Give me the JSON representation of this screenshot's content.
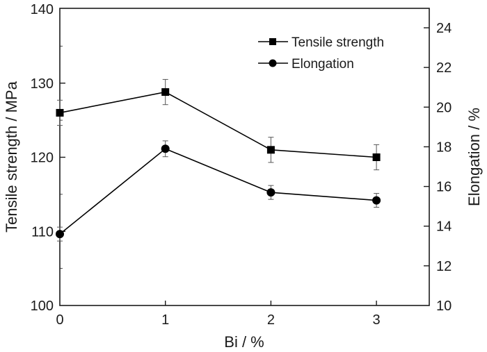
{
  "chart_data": {
    "type": "line",
    "title": "",
    "xlabel": "Bi / %",
    "ylabel_left": "Tensile strength / MPa",
    "ylabel_right": "Elongation / %",
    "x": [
      0,
      1,
      2,
      3
    ],
    "x_ticks": [
      "0",
      "1",
      "2",
      "3"
    ],
    "xlim": [
      0,
      3.5
    ],
    "ylim_left": [
      100,
      140
    ],
    "y_ticks_left": [
      "100",
      "110",
      "120",
      "130",
      "140"
    ],
    "ylim_right": [
      10,
      25
    ],
    "y_ticks_right": [
      "10",
      "12",
      "14",
      "16",
      "18",
      "20",
      "22",
      "24"
    ],
    "grid": false,
    "legend_position": "top-right",
    "series": [
      {
        "name": "Tensile strength",
        "axis": "left",
        "marker": "square",
        "values": [
          126.0,
          128.8,
          121.0,
          120.0
        ],
        "errors": [
          1.7,
          1.7,
          1.7,
          1.7
        ]
      },
      {
        "name": "Elongation",
        "axis": "right",
        "marker": "circle",
        "values": [
          13.6,
          17.9,
          15.7,
          15.3
        ],
        "errors": [
          0.35,
          0.4,
          0.35,
          0.35
        ]
      }
    ],
    "colors": {
      "line": "#000000",
      "marker": "#000000",
      "errorbar": "#555555"
    }
  }
}
